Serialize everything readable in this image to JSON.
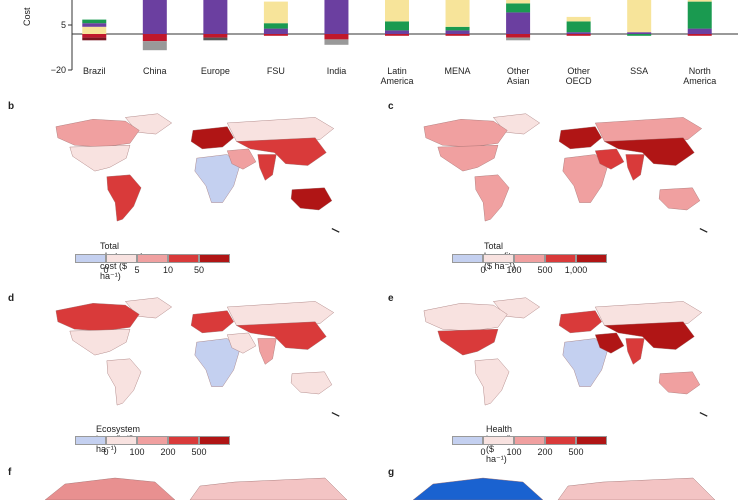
{
  "chart_data": {
    "type": "bar",
    "ylabel": "Cost",
    "yticks": [
      {
        "value": 5,
        "label": "5"
      },
      {
        "value": -20,
        "label": "−20"
      }
    ],
    "categories": [
      "Brazil",
      "China",
      "Europe",
      "FSU",
      "India",
      "Latin America",
      "MENA",
      "Other Asian",
      "Other OECD",
      "SSA",
      "North America"
    ],
    "category_lines": [
      [
        "Brazil"
      ],
      [
        "China"
      ],
      [
        "Europe"
      ],
      [
        "FSU"
      ],
      [
        "India"
      ],
      [
        "Latin",
        "America"
      ],
      [
        "MENA"
      ],
      [
        "Other",
        "Asian"
      ],
      [
        "Other",
        "OECD"
      ],
      [
        "SSA"
      ],
      [
        "North",
        "America"
      ]
    ],
    "segments": [
      [
        {
          "v": 4,
          "c": "#f7e49a"
        },
        {
          "v": 2,
          "c": "#6b3fa0"
        },
        {
          "v": 2,
          "c": "#1a9a50"
        },
        {
          "v": -2,
          "c": "#c0182c"
        },
        {
          "v": -1.5,
          "c": "#7a1620"
        }
      ],
      [
        {
          "v": 30,
          "c": "#6b3fa0"
        },
        {
          "v": -4,
          "c": "#c0182c"
        },
        {
          "v": -5,
          "c": "#999999"
        }
      ],
      [
        {
          "v": 30,
          "c": "#6b3fa0"
        },
        {
          "v": -2,
          "c": "#c0182c"
        },
        {
          "v": -1.5,
          "c": "#555555"
        }
      ],
      [
        {
          "v": 3,
          "c": "#6b3fa0"
        },
        {
          "v": 3,
          "c": "#1a9a50"
        },
        {
          "v": 12,
          "c": "#f7e49a"
        },
        {
          "v": -1,
          "c": "#c0182c"
        }
      ],
      [
        {
          "v": 30,
          "c": "#6b3fa0"
        },
        {
          "v": -3,
          "c": "#c0182c"
        },
        {
          "v": -3,
          "c": "#999999"
        }
      ],
      [
        {
          "v": 2,
          "c": "#6b3fa0"
        },
        {
          "v": 5,
          "c": "#1a9a50"
        },
        {
          "v": 18,
          "c": "#f7e49a"
        },
        {
          "v": -1,
          "c": "#c0182c"
        }
      ],
      [
        {
          "v": 2,
          "c": "#6b3fa0"
        },
        {
          "v": 2,
          "c": "#1a9a50"
        },
        {
          "v": 28,
          "c": "#f7e49a"
        },
        {
          "v": -1,
          "c": "#c0182c"
        }
      ],
      [
        {
          "v": 12,
          "c": "#6b3fa0"
        },
        {
          "v": 5,
          "c": "#1a9a50"
        },
        {
          "v": 10,
          "c": "#f7e49a"
        },
        {
          "v": -2,
          "c": "#c0182c"
        },
        {
          "v": -1.5,
          "c": "#999999"
        }
      ],
      [
        {
          "v": 1,
          "c": "#6b3fa0"
        },
        {
          "v": 6,
          "c": "#1a9a50"
        },
        {
          "v": 2.5,
          "c": "#f7e49a"
        },
        {
          "v": -1,
          "c": "#c0182c"
        }
      ],
      [
        {
          "v": 1,
          "c": "#6b3fa0"
        },
        {
          "v": 28,
          "c": "#f7e49a"
        },
        {
          "v": -1,
          "c": "#1a9a50"
        }
      ],
      [
        {
          "v": 3,
          "c": "#6b3fa0"
        },
        {
          "v": 15,
          "c": "#1a9a50"
        },
        {
          "v": 10,
          "c": "#f7e49a"
        },
        {
          "v": -1,
          "c": "#c0182c"
        }
      ]
    ]
  },
  "maps": [
    {
      "letter": "b",
      "title": "Total abatement cost ($ ha⁻¹)",
      "colors": [
        "#c4d0f0",
        "#f8e2e0",
        "#f0a0a0",
        "#d93a3a",
        "#b01515"
      ],
      "ticks": [
        "0",
        "5",
        "10",
        "50"
      ],
      "regions": {
        "na": 1,
        "ca": 2,
        "sa": 3,
        "eu": 4,
        "ru": 1,
        "af": 0,
        "me": 2,
        "as": 3,
        "in": 3,
        "au": 4,
        "gr": 1
      }
    },
    {
      "letter": "c",
      "title": "Total benefits ($ ha⁻¹)",
      "colors": [
        "#c4d0f0",
        "#f8e2e0",
        "#f0a0a0",
        "#d93a3a",
        "#b01515"
      ],
      "ticks": [
        "0",
        "100",
        "500",
        "1,000"
      ],
      "regions": {
        "na": 2,
        "ca": 2,
        "sa": 2,
        "eu": 4,
        "ru": 2,
        "af": 2,
        "me": 3,
        "as": 4,
        "in": 3,
        "au": 2,
        "gr": 1
      }
    },
    {
      "letter": "d",
      "title": "Ecosystem benefit ($ ha⁻¹)",
      "colors": [
        "#c4d0f0",
        "#f8e2e0",
        "#f0a0a0",
        "#d93a3a",
        "#b01515"
      ],
      "ticks": [
        "0",
        "100",
        "200",
        "500"
      ],
      "regions": {
        "na": 1,
        "ca": 3,
        "sa": 1,
        "eu": 3,
        "ru": 1,
        "af": 0,
        "me": 1,
        "as": 3,
        "in": 2,
        "au": 1,
        "gr": 1
      }
    },
    {
      "letter": "e",
      "title": "Health benefit ($ ha⁻¹)",
      "colors": [
        "#c4d0f0",
        "#f8e2e0",
        "#f0a0a0",
        "#d93a3a",
        "#b01515"
      ],
      "ticks": [
        "0",
        "100",
        "200",
        "500"
      ],
      "regions": {
        "na": 3,
        "ca": 1,
        "sa": 1,
        "eu": 3,
        "ru": 1,
        "af": 0,
        "me": 4,
        "as": 4,
        "in": 3,
        "au": 2,
        "gr": 1
      }
    }
  ],
  "partial_maps": [
    {
      "letter": "f",
      "base": "#f3c4c4",
      "accent": "#e89090"
    },
    {
      "letter": "g",
      "base": "#f3c4c4",
      "accent": "#1a62d0"
    }
  ]
}
